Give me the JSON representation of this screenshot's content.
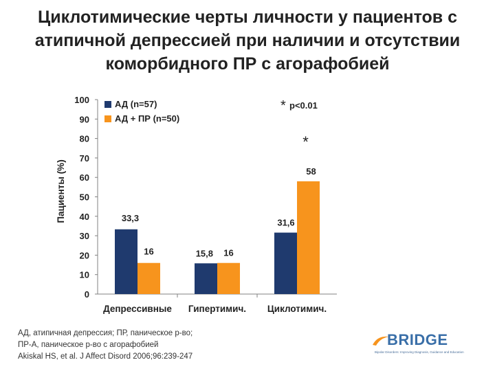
{
  "title": {
    "lines": [
      "Циклотимические черты личности у пациентов с",
      "атипичной депрессией при наличии и отсутствии",
      "коморбидного ПР с агорафобией"
    ]
  },
  "chart_data": {
    "type": "bar",
    "title": "",
    "xlabel": "",
    "ylabel": "Пациенты (%)",
    "ylim": [
      0,
      100
    ],
    "yticks": [
      0,
      10,
      20,
      30,
      40,
      50,
      60,
      70,
      80,
      90,
      100
    ],
    "grid": false,
    "legend_position": "top-left",
    "categories": [
      "Депрессивные",
      "Гипертимич.",
      "Циклотимич."
    ],
    "series": [
      {
        "name": "АД (n=57)",
        "color": "#1f3a6e",
        "values": [
          33.3,
          15.8,
          31.6
        ],
        "labels": [
          "33,3",
          "15,8",
          "31,6"
        ]
      },
      {
        "name": "АД + ПР (n=50)",
        "color": "#f7941d",
        "values": [
          16,
          16,
          58
        ],
        "labels": [
          "16",
          "16",
          "58"
        ]
      }
    ],
    "annotations": {
      "significance_note": "p<0.01",
      "significance_marker": "*",
      "marked_category_index": 2
    }
  },
  "footnotes": {
    "lines": [
      "АД, атипичная депрессия; ПР, паническое р-во;",
      "ПР-А, паническое р-во с агорафобией",
      "Akiskal HS, et al. J Affect Disord 2006;96:239-247"
    ]
  },
  "logo": {
    "word": "BRIDGE",
    "tagline": "Bipolar Disorders: Improving Diagnosis, Guidance and Education",
    "color": "#3a6fa8",
    "accent_color": "#f7941d"
  }
}
